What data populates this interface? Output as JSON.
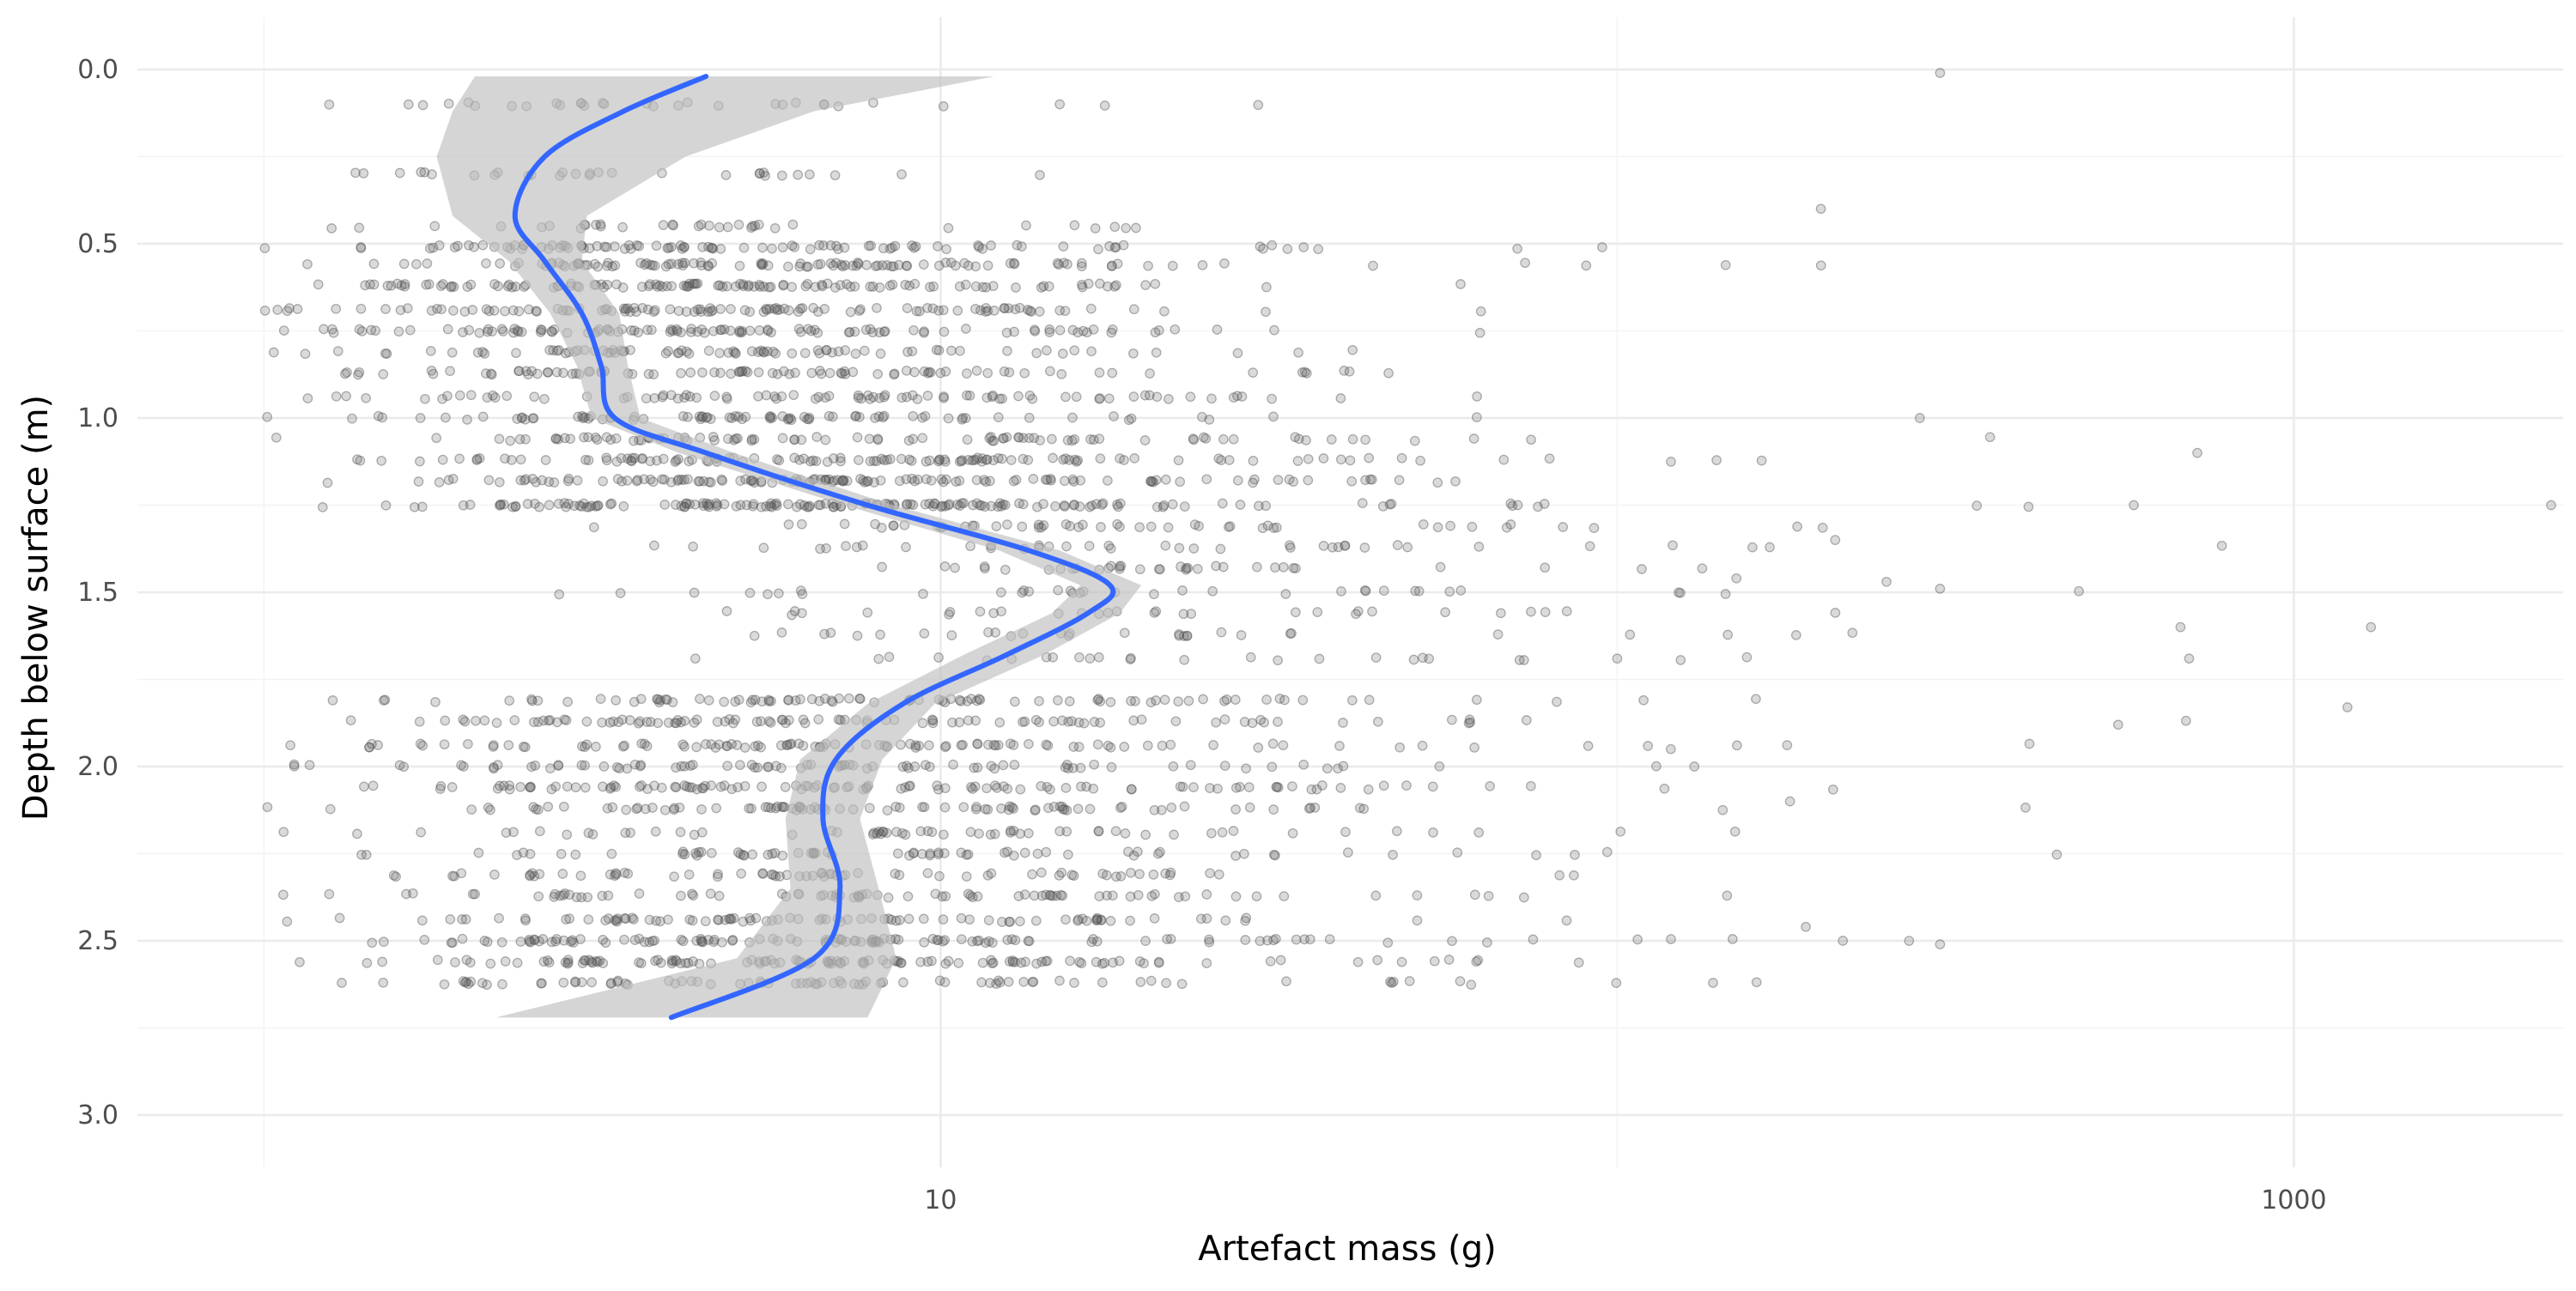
{
  "chart_data": {
    "type": "scatter",
    "xlabel": "Artefact mass (g)",
    "ylabel": "Depth below surface (m)",
    "x_scale": "log10",
    "x_ticks": [
      10,
      1000
    ],
    "x_tick_labels": [
      "10",
      "1000"
    ],
    "xlim": [
      0.65,
      2500
    ],
    "y_reversed": true,
    "y_ticks": [
      0,
      0.5,
      1,
      1.5,
      2,
      2.5,
      3
    ],
    "y_tick_labels": [
      "0.0",
      "0.5",
      "1.0",
      "1.5",
      "2.0",
      "2.5",
      "3.0"
    ],
    "ylim": [
      -0.15,
      3.15
    ],
    "grid": true,
    "colors": {
      "points": "#555555",
      "smooth_line": "#3366ff",
      "ribbon": "#bebebe",
      "grid": "#ebebeb"
    },
    "smooth": {
      "method": "loess",
      "x": [
        4.5,
        3.4,
        2.6,
        2.35,
        2.6,
        2.95,
        3.15,
        3.3,
        4.5,
        7.8,
        13.5,
        17.8,
        16.5,
        12.5,
        8.8,
        7.0,
        6.7,
        7.1,
        6.5,
        4.0
      ],
      "y": [
        0.02,
        0.12,
        0.25,
        0.42,
        0.55,
        0.7,
        0.85,
        1.0,
        1.1,
        1.25,
        1.38,
        1.48,
        1.56,
        1.68,
        1.82,
        1.98,
        2.15,
        2.35,
        2.55,
        2.72
      ],
      "ribbon_low": [
        2.05,
        1.9,
        1.8,
        1.9,
        2.3,
        2.65,
        2.9,
        3.05,
        4.1,
        7.2,
        12.2,
        16.1,
        14.6,
        10.8,
        7.8,
        6.2,
        5.9,
        6.0,
        5.0,
        2.2
      ],
      "ribbon_high": [
        12.0,
        6.5,
        4.2,
        3.0,
        2.95,
        3.35,
        3.45,
        3.6,
        4.95,
        8.5,
        15.0,
        19.8,
        18.4,
        14.2,
        9.8,
        8.2,
        7.6,
        8.1,
        8.6,
        7.8
      ]
    },
    "point_groups": [
      {
        "depth": 0.1,
        "count": 30,
        "mode": 2.5,
        "spread": 0.35
      },
      {
        "depth": 0.3,
        "count": 30,
        "mode": 2.5,
        "spread": 0.35
      },
      {
        "depth": 0.45,
        "count": 35,
        "mode": 4.0,
        "spread": 0.4
      },
      {
        "depth": 0.51,
        "count": 95,
        "mode": 3.5,
        "spread": 0.42
      },
      {
        "depth": 0.56,
        "count": 110,
        "mode": 3.5,
        "spread": 0.42
      },
      {
        "depth": 0.62,
        "count": 120,
        "mode": 3.5,
        "spread": 0.42
      },
      {
        "depth": 0.69,
        "count": 110,
        "mode": 3.5,
        "spread": 0.42
      },
      {
        "depth": 0.75,
        "count": 110,
        "mode": 3.5,
        "spread": 0.42
      },
      {
        "depth": 0.81,
        "count": 80,
        "mode": 3.5,
        "spread": 0.45
      },
      {
        "depth": 0.87,
        "count": 90,
        "mode": 4.0,
        "spread": 0.45
      },
      {
        "depth": 0.94,
        "count": 85,
        "mode": 4.0,
        "spread": 0.48
      },
      {
        "depth": 1.0,
        "count": 80,
        "mode": 4.0,
        "spread": 0.48
      },
      {
        "depth": 1.06,
        "count": 90,
        "mode": 5.0,
        "spread": 0.5
      },
      {
        "depth": 1.12,
        "count": 120,
        "mode": 5.0,
        "spread": 0.5
      },
      {
        "depth": 1.18,
        "count": 130,
        "mode": 5.0,
        "spread": 0.5
      },
      {
        "depth": 1.25,
        "count": 160,
        "mode": 6.0,
        "spread": 0.5
      },
      {
        "depth": 1.31,
        "count": 50,
        "mode": 12.0,
        "spread": 0.45
      },
      {
        "depth": 1.37,
        "count": 40,
        "mode": 15.0,
        "spread": 0.45
      },
      {
        "depth": 1.43,
        "count": 35,
        "mode": 16.0,
        "spread": 0.45
      },
      {
        "depth": 1.5,
        "count": 35,
        "mode": 15.0,
        "spread": 0.45
      },
      {
        "depth": 1.56,
        "count": 30,
        "mode": 12.0,
        "spread": 0.45
      },
      {
        "depth": 1.62,
        "count": 30,
        "mode": 12.0,
        "spread": 0.45
      },
      {
        "depth": 1.69,
        "count": 25,
        "mode": 12.0,
        "spread": 0.45
      },
      {
        "depth": 1.81,
        "count": 90,
        "mode": 5.0,
        "spread": 0.48
      },
      {
        "depth": 1.87,
        "count": 100,
        "mode": 5.0,
        "spread": 0.48
      },
      {
        "depth": 1.94,
        "count": 100,
        "mode": 5.0,
        "spread": 0.48
      },
      {
        "depth": 2.0,
        "count": 80,
        "mode": 5.0,
        "spread": 0.48
      },
      {
        "depth": 2.06,
        "count": 110,
        "mode": 5.0,
        "spread": 0.48
      },
      {
        "depth": 2.12,
        "count": 90,
        "mode": 5.0,
        "spread": 0.48
      },
      {
        "depth": 2.19,
        "count": 60,
        "mode": 5.0,
        "spread": 0.48
      },
      {
        "depth": 2.25,
        "count": 70,
        "mode": 5.0,
        "spread": 0.48
      },
      {
        "depth": 2.31,
        "count": 70,
        "mode": 5.0,
        "spread": 0.48
      },
      {
        "depth": 2.37,
        "count": 80,
        "mode": 5.0,
        "spread": 0.48
      },
      {
        "depth": 2.44,
        "count": 90,
        "mode": 5.0,
        "spread": 0.48
      },
      {
        "depth": 2.5,
        "count": 120,
        "mode": 5.0,
        "spread": 0.48
      },
      {
        "depth": 2.56,
        "count": 120,
        "mode": 5.0,
        "spread": 0.48
      },
      {
        "depth": 2.62,
        "count": 80,
        "mode": 5.0,
        "spread": 0.48
      }
    ],
    "outliers": [
      {
        "x": 300,
        "y": 0.01
      },
      {
        "x": 15,
        "y": 0.1
      },
      {
        "x": 200,
        "y": 0.4
      },
      {
        "x": 95,
        "y": 0.51
      },
      {
        "x": 280,
        "y": 1.0
      },
      {
        "x": 720,
        "y": 1.1
      },
      {
        "x": 580,
        "y": 1.25
      },
      {
        "x": 2400,
        "y": 1.25
      },
      {
        "x": 1300,
        "y": 1.6
      },
      {
        "x": 1200,
        "y": 1.83
      },
      {
        "x": 550,
        "y": 1.88
      },
      {
        "x": 680,
        "y": 1.6
      },
      {
        "x": 700,
        "y": 1.69
      },
      {
        "x": 250,
        "y": 1.47
      },
      {
        "x": 300,
        "y": 1.49
      },
      {
        "x": 210,
        "y": 1.35
      },
      {
        "x": 150,
        "y": 1.46
      },
      {
        "x": 180,
        "y": 2.1
      },
      {
        "x": 270,
        "y": 2.5
      },
      {
        "x": 300,
        "y": 2.51
      },
      {
        "x": 190,
        "y": 2.46
      },
      {
        "x": 130,
        "y": 2.0
      },
      {
        "x": 120,
        "y": 1.95
      },
      {
        "x": 100,
        "y": 1.69
      }
    ]
  }
}
